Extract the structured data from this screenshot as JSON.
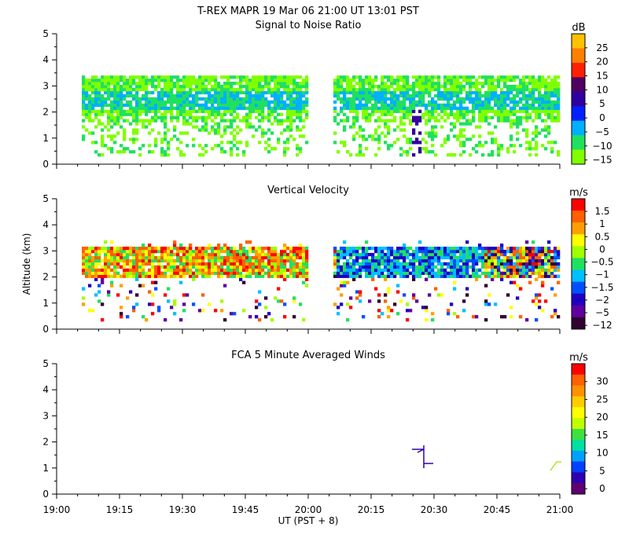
{
  "header": {
    "title": "T-REX   MAPR 19 Mar 06   21:00 UT   13:01   PST"
  },
  "chart_data": [
    {
      "type": "heatmap",
      "title": "Signal to Noise Ratio",
      "ylabel": "",
      "ylim": [
        0,
        5
      ],
      "yticks": [
        "0",
        "1",
        "2",
        "3",
        "4",
        "5"
      ],
      "colorbar": {
        "unit": "dB",
        "labels": [
          "25",
          "20",
          "15",
          "10",
          "5",
          "0",
          "−5",
          "−10",
          "−15"
        ],
        "colors": [
          "#ffc000",
          "#ff8000",
          "#ff2000",
          "#500060",
          "#3000a0",
          "#0020ff",
          "#00b0ff",
          "#20e060",
          "#80ff00"
        ]
      }
    },
    {
      "type": "heatmap",
      "title": "Vertical Velocity",
      "ylabel": "Altitude (km)",
      "ylim": [
        0,
        5
      ],
      "yticks": [
        "0",
        "1",
        "2",
        "3",
        "4",
        "5"
      ],
      "colorbar": {
        "unit": "m/s",
        "labels": [
          "1.5",
          "1",
          "0.5",
          "0",
          "−0.5",
          "−1",
          "−1.5",
          "−2",
          "−5",
          "−12"
        ],
        "colors": [
          "#ff0000",
          "#ff6000",
          "#ffa000",
          "#ffff00",
          "#a0ff00",
          "#20e060",
          "#00c0ff",
          "#0050ff",
          "#2000c0",
          "#6000a0",
          "#300030"
        ]
      }
    },
    {
      "type": "scatter",
      "title": "FCA 5 Minute Averaged Winds",
      "ylabel": "",
      "ylim": [
        0,
        5
      ],
      "yticks": [
        "0",
        "1",
        "2",
        "3",
        "4",
        "5"
      ],
      "colorbar": {
        "unit": "m/s",
        "labels": [
          "30",
          "25",
          "20",
          "15",
          "10",
          "5",
          "0"
        ],
        "colors": [
          "#ff0000",
          "#ff6000",
          "#ff9000",
          "#ffcc00",
          "#ffff00",
          "#c0ff00",
          "#40e040",
          "#00e0a0",
          "#00a0ff",
          "#0040ff",
          "#3000b0",
          "#600070"
        ]
      }
    }
  ],
  "xaxis": {
    "label": "UT  (PST + 8)",
    "ticks": [
      "19:00",
      "19:15",
      "19:30",
      "19:45",
      "20:00",
      "20:15",
      "20:30",
      "20:45",
      "21:00"
    ]
  }
}
